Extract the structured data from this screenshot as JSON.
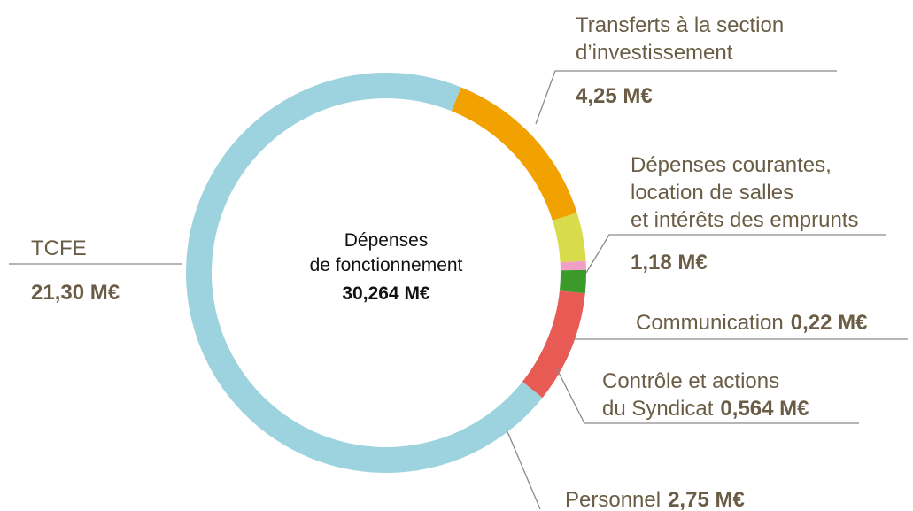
{
  "chart_data": {
    "type": "donut",
    "center_label": "Dépenses\nde fonctionnement",
    "total": {
      "value": 30.264,
      "label": "30,264 M€"
    },
    "categories": [
      "Transferts à la section\nd’investissement",
      "Dépenses courantes,\nlocation de salles\net intérêts des emprunts",
      "Communication",
      "Contrôle et actions\ndu Syndicat",
      "Personnel",
      "TCFE"
    ],
    "values": [
      4.25,
      1.18,
      0.22,
      0.564,
      2.75,
      21.3
    ],
    "value_labels": [
      "4,25 M€",
      "1,18 M€",
      "0,22 M€",
      "0,564 M€",
      "2,75 M€",
      "21,30 M€"
    ],
    "colors": [
      "#f2a200",
      "#d9dc4a",
      "#f0a0c4",
      "#3a9a2a",
      "#e85b55",
      "#9dd3df"
    ]
  }
}
